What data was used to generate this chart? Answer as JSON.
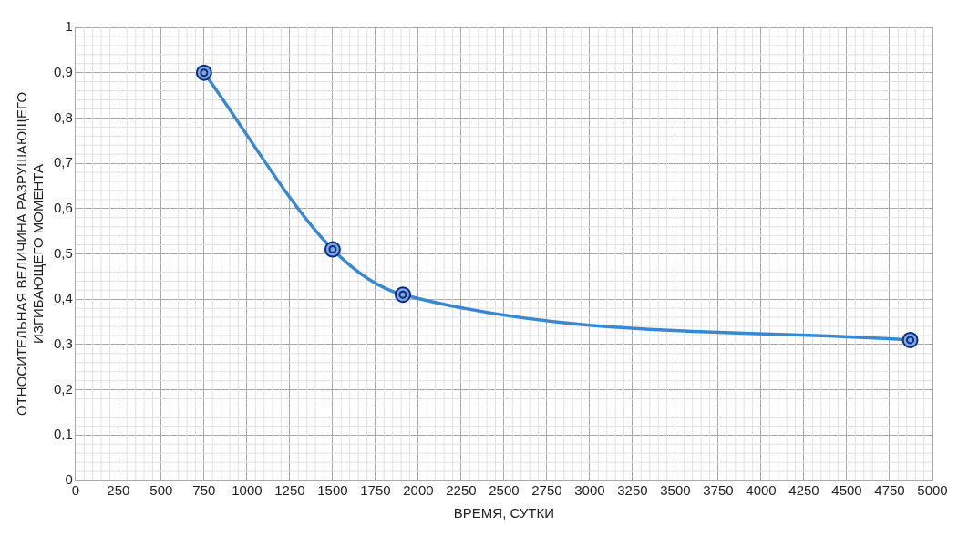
{
  "chart_data": {
    "type": "line",
    "xlabel": "ВРЕМЯ, СУТКИ",
    "ylabel": "ОТНОСИТЕЛЬНАЯ ВЕЛИЧИНА РАЗРУШАЮЩЕГО ИЗГИБАЮЩЕГО МОМЕНТА",
    "x": [
      750,
      1500,
      1910,
      4870
    ],
    "series": [
      {
        "color": "#3a88d0",
        "values": [
          0.9,
          0.51,
          0.41,
          0.31
        ]
      }
    ],
    "xlim": [
      0,
      5000
    ],
    "xticks": [
      0,
      250,
      500,
      750,
      1000,
      1250,
      1500,
      1750,
      2000,
      2250,
      2500,
      2750,
      3000,
      3250,
      3500,
      3750,
      4000,
      4250,
      4500,
      4750,
      5000
    ],
    "ylim": [
      0,
      1
    ],
    "yticks": [
      0,
      {
        "value": 0.1,
        "label": "0,1"
      },
      {
        "value": 0.2,
        "label": "0,2"
      },
      {
        "value": 0.3,
        "label": "0,3"
      },
      {
        "value": 0.4,
        "label": "0,4"
      },
      {
        "value": 0.5,
        "label": "0,5"
      },
      {
        "value": 0.6,
        "label": "0,6"
      },
      {
        "value": 0.7,
        "label": "0,7"
      },
      {
        "value": 0.8,
        "label": "0,8"
      },
      {
        "value": 0.9,
        "label": "0,9"
      },
      1
    ],
    "grid": true,
    "marker": "circle",
    "line_style": "solid",
    "legend": false
  }
}
